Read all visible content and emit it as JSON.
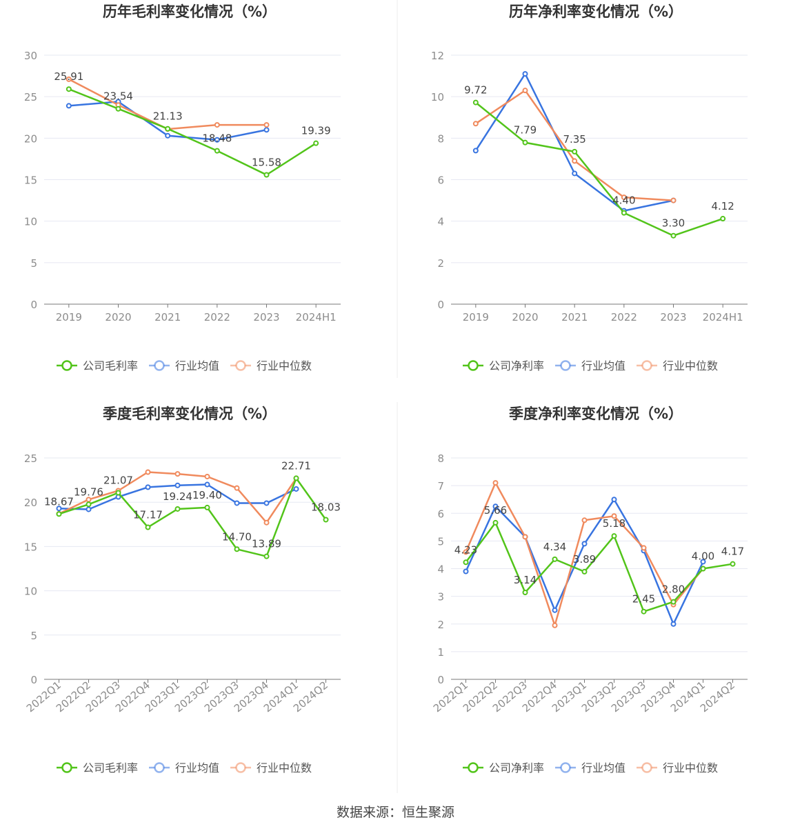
{
  "colors": {
    "company": "#52c41a",
    "avg": "#3874e0",
    "median": "#f08a5d",
    "grid": "#e6e8f2",
    "axis": "#8c8c8c",
    "divider": "#eeeeee"
  },
  "source": "数据来源：恒生聚源",
  "chart_data": [
    {
      "type": "line",
      "title": "历年毛利率变化情况（%）",
      "categories": [
        "2019",
        "2020",
        "2021",
        "2022",
        "2023",
        "2024H1"
      ],
      "ylim": [
        0,
        30
      ],
      "yticks": [
        0,
        5,
        10,
        15,
        20,
        25,
        30
      ],
      "grid": true,
      "legend_position": "bottom",
      "series": [
        {
          "name": "公司毛利率",
          "key": "company",
          "values": [
            25.91,
            23.54,
            21.13,
            18.48,
            15.58,
            19.39
          ],
          "labels": [
            "25.91",
            "23.54",
            "21.13",
            "18.48",
            "15.58",
            "19.39"
          ]
        },
        {
          "name": "行业均值",
          "key": "avg",
          "values": [
            23.9,
            24.4,
            20.3,
            19.8,
            21.0,
            null
          ]
        },
        {
          "name": "行业中位数",
          "key": "median",
          "values": [
            27.1,
            24.0,
            21.1,
            21.6,
            21.6,
            null
          ]
        }
      ]
    },
    {
      "type": "line",
      "title": "历年净利率变化情况（%）",
      "categories": [
        "2019",
        "2020",
        "2021",
        "2022",
        "2023",
        "2024H1"
      ],
      "ylim": [
        0,
        12
      ],
      "yticks": [
        0,
        2,
        4,
        6,
        8,
        10,
        12
      ],
      "grid": true,
      "legend_position": "bottom",
      "series": [
        {
          "name": "公司净利率",
          "key": "company",
          "values": [
            9.72,
            7.79,
            7.35,
            4.4,
            3.3,
            4.12
          ],
          "labels": [
            "9.72",
            "7.79",
            "7.35",
            "4.40",
            "3.30",
            "4.12"
          ]
        },
        {
          "name": "行业均值",
          "key": "avg",
          "values": [
            7.4,
            11.1,
            6.3,
            4.5,
            5.0,
            null
          ]
        },
        {
          "name": "行业中位数",
          "key": "median",
          "values": [
            8.7,
            10.3,
            6.9,
            5.15,
            5.0,
            null
          ]
        }
      ]
    },
    {
      "type": "line",
      "title": "季度毛利率变化情况（%）",
      "categories": [
        "2022Q1",
        "2022Q2",
        "2022Q3",
        "2022Q4",
        "2023Q1",
        "2023Q2",
        "2023Q3",
        "2023Q4",
        "2024Q1",
        "2024Q2"
      ],
      "ylim": [
        0,
        25
      ],
      "yticks": [
        0,
        5,
        10,
        15,
        20,
        25
      ],
      "grid": true,
      "legend_position": "bottom",
      "series": [
        {
          "name": "公司毛利率",
          "key": "company",
          "values": [
            18.67,
            19.76,
            21.07,
            17.17,
            19.24,
            19.4,
            14.7,
            13.89,
            22.71,
            18.03
          ],
          "labels": [
            "18.67",
            "19.76",
            "21.07",
            "17.17",
            "19.24",
            "19.40",
            "14.70",
            "13.89",
            "22.71",
            "18.03"
          ]
        },
        {
          "name": "行业均值",
          "key": "avg",
          "values": [
            19.3,
            19.2,
            20.6,
            21.7,
            21.9,
            22.0,
            19.9,
            19.9,
            21.5,
            null
          ]
        },
        {
          "name": "行业中位数",
          "key": "median",
          "values": [
            18.7,
            20.3,
            21.3,
            23.4,
            23.2,
            22.9,
            21.6,
            17.7,
            22.7,
            null
          ]
        }
      ]
    },
    {
      "type": "line",
      "title": "季度净利率变化情况（%）",
      "categories": [
        "2022Q1",
        "2022Q2",
        "2022Q3",
        "2022Q4",
        "2023Q1",
        "2023Q2",
        "2023Q3",
        "2023Q4",
        "2024Q1",
        "2024Q2"
      ],
      "ylim": [
        0,
        8
      ],
      "yticks": [
        0,
        1,
        2,
        3,
        4,
        5,
        6,
        7,
        8
      ],
      "grid": true,
      "legend_position": "bottom",
      "series": [
        {
          "name": "公司净利率",
          "key": "company",
          "values": [
            4.23,
            5.66,
            3.14,
            4.34,
            3.89,
            5.18,
            2.45,
            2.8,
            4.0,
            4.17
          ],
          "labels": [
            "4.23",
            "5.66",
            "3.14",
            "4.34",
            "3.89",
            "5.18",
            "2.45",
            "2.80",
            "4.00",
            "4.17"
          ]
        },
        {
          "name": "行业均值",
          "key": "avg",
          "values": [
            3.9,
            6.25,
            5.15,
            2.5,
            4.9,
            6.5,
            4.65,
            2.0,
            4.25,
            null
          ]
        },
        {
          "name": "行业中位数",
          "key": "median",
          "values": [
            4.6,
            7.1,
            5.15,
            1.95,
            5.75,
            5.9,
            4.75,
            2.7,
            4.0,
            null
          ]
        }
      ]
    }
  ]
}
